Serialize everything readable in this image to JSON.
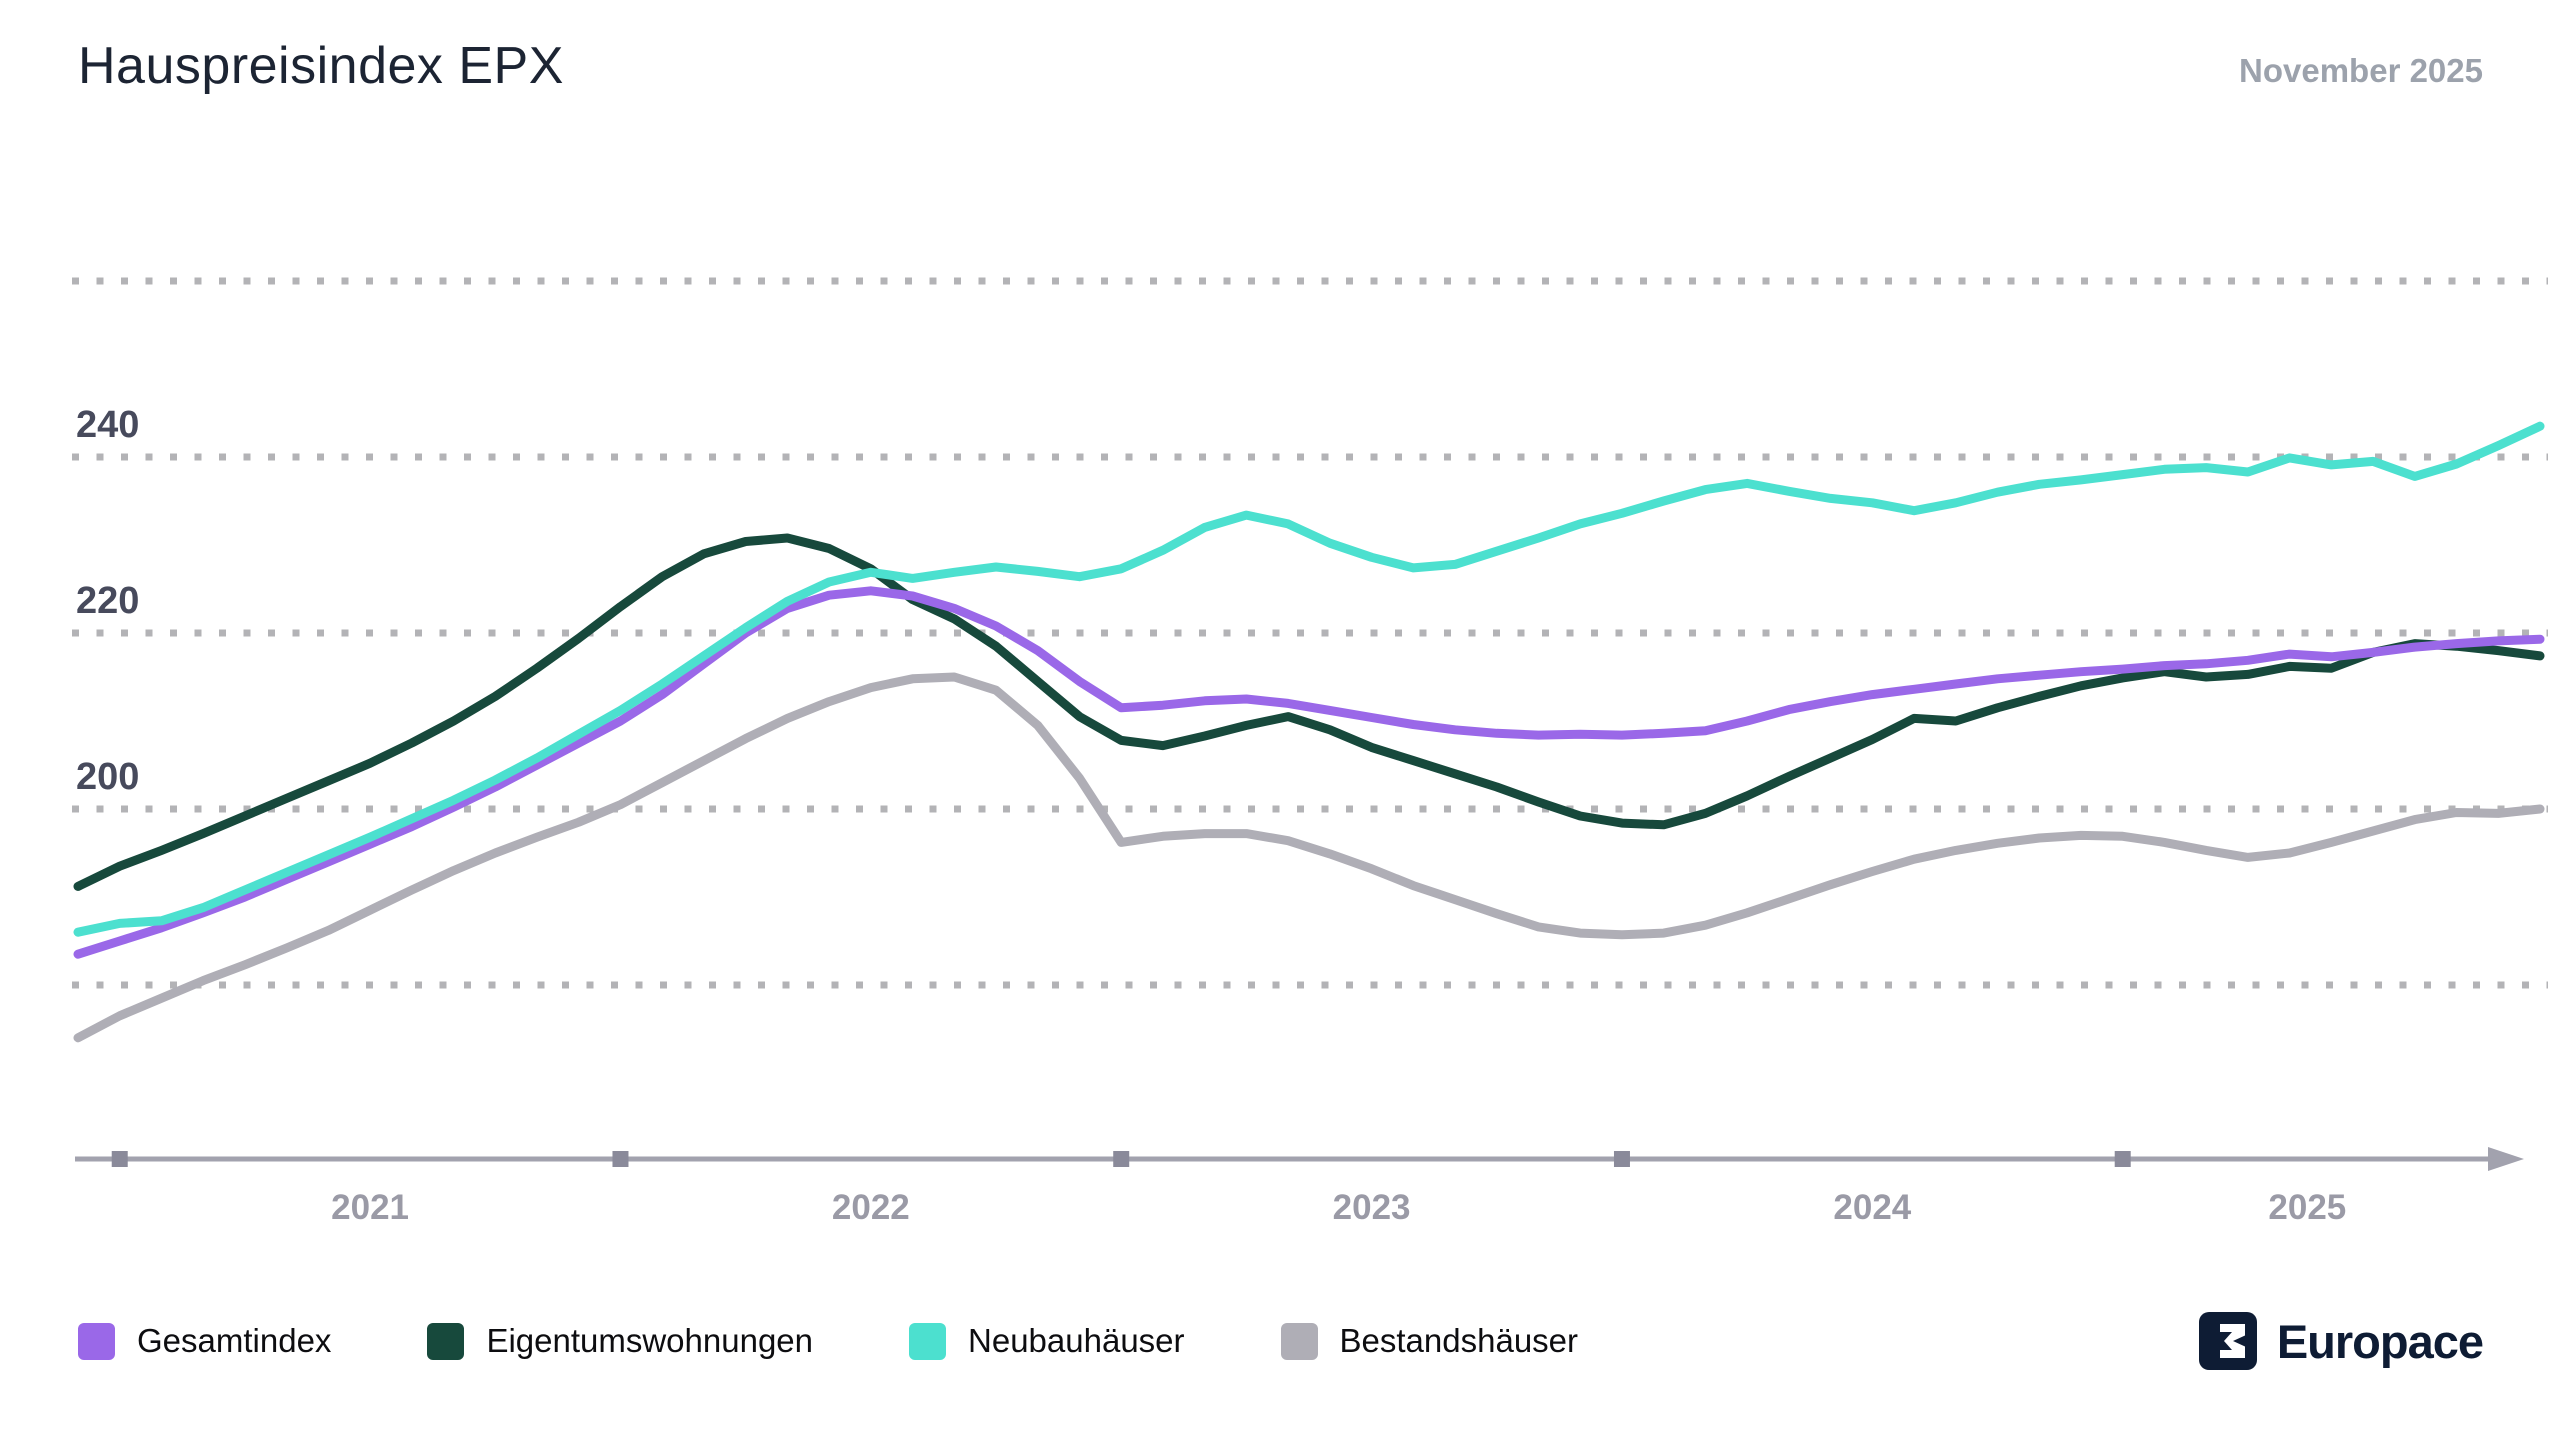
{
  "header": {
    "title": "Hauspreisindex EPX",
    "date_label": "November 2025"
  },
  "chart_data": {
    "type": "line",
    "title": "Hauspreisindex EPX",
    "subtitle": "November 2025",
    "x_start": "2020-12",
    "x_end": "2025-11",
    "x_unit": "month",
    "xlabel": "",
    "ylabel": "",
    "x_tick_labels": [
      "2021",
      "2022",
      "2023",
      "2024",
      "2025"
    ],
    "y_gridline_values": [
      260,
      240,
      220,
      200,
      180
    ],
    "y_labeled_values": [
      240,
      220,
      200
    ],
    "ylim": [
      172,
      262
    ],
    "grid": "dotted-horizontal",
    "legend_position": "bottom-left",
    "series": [
      {
        "name": "Gesamtindex",
        "color": "#9A68E8",
        "values": [
          183.5,
          185.0,
          186.5,
          188.2,
          190.0,
          192.0,
          194.0,
          196.0,
          198.0,
          200.2,
          202.5,
          205.0,
          207.5,
          210.0,
          213.0,
          216.5,
          220.0,
          222.8,
          224.3,
          224.8,
          224.2,
          222.8,
          220.8,
          218.0,
          214.5,
          211.5,
          211.8,
          212.3,
          212.5,
          212.0,
          211.2,
          210.4,
          209.6,
          209.0,
          208.6,
          208.4,
          208.5,
          208.4,
          208.6,
          208.9,
          210.0,
          211.3,
          212.2,
          213.0,
          213.6,
          214.2,
          214.8,
          215.2,
          215.6,
          215.9,
          216.3,
          216.5,
          216.9,
          217.6,
          217.3,
          217.8,
          218.4,
          218.8,
          219.1,
          219.3
        ]
      },
      {
        "name": "Eigentumswohnungen",
        "color": "#17493C",
        "values": [
          191.2,
          193.5,
          195.3,
          197.2,
          199.2,
          201.2,
          203.2,
          205.2,
          207.5,
          210.0,
          212.8,
          216.0,
          219.4,
          223.0,
          226.4,
          229.0,
          230.4,
          230.8,
          229.6,
          227.3,
          223.8,
          221.6,
          218.5,
          214.5,
          210.5,
          207.8,
          207.2,
          208.3,
          209.5,
          210.5,
          209.0,
          207.0,
          205.5,
          204.0,
          202.5,
          200.8,
          199.2,
          198.4,
          198.2,
          199.5,
          201.5,
          203.7,
          205.8,
          207.9,
          210.3,
          210.0,
          211.5,
          212.8,
          214.0,
          214.9,
          215.6,
          215.0,
          215.3,
          216.2,
          216.0,
          217.8,
          218.8,
          218.5,
          218.0,
          217.4
        ]
      },
      {
        "name": "Neubauhäuser",
        "color": "#4CE0CF",
        "values": [
          186.0,
          187.0,
          187.3,
          188.8,
          190.8,
          192.8,
          194.8,
          196.8,
          198.9,
          201.0,
          203.3,
          205.8,
          208.5,
          211.2,
          214.2,
          217.4,
          220.6,
          223.6,
          225.8,
          226.9,
          226.2,
          226.9,
          227.5,
          227.0,
          226.4,
          227.3,
          229.4,
          232.0,
          233.4,
          232.4,
          230.2,
          228.6,
          227.4,
          227.8,
          229.3,
          230.8,
          232.4,
          233.6,
          235.0,
          236.3,
          237.0,
          236.1,
          235.3,
          234.8,
          233.9,
          234.8,
          236.0,
          236.9,
          237.4,
          238.0,
          238.6,
          238.8,
          238.3,
          239.9,
          239.1,
          239.5,
          237.8,
          239.2,
          241.3,
          243.5
        ]
      },
      {
        "name": "Bestandshäuser",
        "color": "#AFAEB6",
        "values": [
          174.0,
          176.5,
          178.5,
          180.5,
          182.3,
          184.2,
          186.2,
          188.5,
          190.8,
          193.0,
          195.0,
          196.8,
          198.5,
          200.5,
          203.0,
          205.5,
          208.0,
          210.3,
          212.2,
          213.8,
          214.8,
          215.0,
          213.5,
          209.5,
          203.5,
          196.2,
          196.9,
          197.2,
          197.2,
          196.4,
          194.9,
          193.2,
          191.3,
          189.7,
          188.1,
          186.6,
          185.9,
          185.7,
          185.9,
          186.8,
          188.2,
          189.8,
          191.4,
          192.9,
          194.3,
          195.3,
          196.1,
          196.7,
          197.0,
          196.9,
          196.2,
          195.3,
          194.5,
          195.0,
          196.2,
          197.5,
          198.8,
          199.6,
          199.5,
          200.0
        ]
      }
    ]
  },
  "legend": {
    "items": [
      {
        "label": "Gesamtindex"
      },
      {
        "label": "Eigentumswohnungen"
      },
      {
        "label": "Neubauhäuser"
      },
      {
        "label": "Bestandshäuser"
      }
    ]
  },
  "footer": {
    "brand": "Europace"
  },
  "colors": {
    "title_text": "#1C2433",
    "date_text": "#9CA2AC",
    "y_label_text": "#474A5C",
    "year_label_text": "#9A9AA6",
    "gridline_dots": "#B3B3B6",
    "axis_line": "#A2A2AE",
    "axis_tick": "#8A8A9A",
    "legend_text": "#0D0D10",
    "brand_navy": "#0E1C34",
    "background": "#FFFFFF"
  }
}
